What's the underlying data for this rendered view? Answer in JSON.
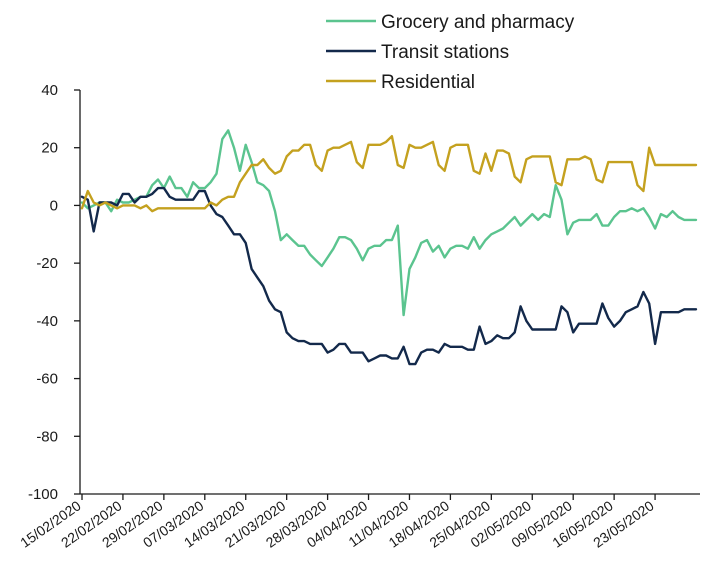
{
  "chart_data": {
    "type": "line",
    "title": "",
    "xlabel": "",
    "ylabel": "",
    "ylim": [
      -100,
      40
    ],
    "yticks": [
      40,
      20,
      0,
      -20,
      -40,
      -60,
      -80,
      -100
    ],
    "yticks_labels": [
      "40",
      "20",
      "0",
      "-20",
      "-40",
      "-60",
      "-80",
      "-100"
    ],
    "x_start": "15/02/2020",
    "x_end": "30/05/2020",
    "xtick_labels": [
      "15/02/2020",
      "22/02/2020",
      "29/02/2020",
      "07/03/2020",
      "14/03/2020",
      "21/03/2020",
      "28/03/2020",
      "04/04/2020",
      "11/04/2020",
      "18/04/2020",
      "25/04/2020",
      "02/05/2020",
      "09/05/2020",
      "16/05/2020",
      "23/05/2020"
    ],
    "grid": false,
    "legend_position": "top",
    "dates": [
      "15/02/2020",
      "16/02/2020",
      "17/02/2020",
      "18/02/2020",
      "19/02/2020",
      "20/02/2020",
      "21/02/2020",
      "22/02/2020",
      "23/02/2020",
      "24/02/2020",
      "25/02/2020",
      "26/02/2020",
      "27/02/2020",
      "28/02/2020",
      "29/02/2020",
      "01/03/2020",
      "02/03/2020",
      "03/03/2020",
      "04/03/2020",
      "05/03/2020",
      "06/03/2020",
      "07/03/2020",
      "08/03/2020",
      "09/03/2020",
      "10/03/2020",
      "11/03/2020",
      "12/03/2020",
      "13/03/2020",
      "14/03/2020",
      "15/03/2020",
      "16/03/2020",
      "17/03/2020",
      "18/03/2020",
      "19/03/2020",
      "20/03/2020",
      "21/03/2020",
      "22/03/2020",
      "23/03/2020",
      "24/03/2020",
      "25/03/2020",
      "26/03/2020",
      "27/03/2020",
      "28/03/2020",
      "29/03/2020",
      "30/03/2020",
      "31/03/2020",
      "01/04/2020",
      "02/04/2020",
      "03/04/2020",
      "04/04/2020",
      "05/04/2020",
      "06/04/2020",
      "07/04/2020",
      "08/04/2020",
      "09/04/2020",
      "10/04/2020",
      "11/04/2020",
      "12/04/2020",
      "13/04/2020",
      "14/04/2020",
      "15/04/2020",
      "16/04/2020",
      "17/04/2020",
      "18/04/2020",
      "19/04/2020",
      "20/04/2020",
      "21/04/2020",
      "22/04/2020",
      "23/04/2020",
      "24/04/2020",
      "25/04/2020",
      "26/04/2020",
      "27/04/2020",
      "28/04/2020",
      "29/04/2020",
      "30/04/2020",
      "01/05/2020",
      "02/05/2020",
      "03/05/2020",
      "04/05/2020",
      "05/05/2020",
      "06/05/2020",
      "07/05/2020",
      "08/05/2020",
      "09/05/2020",
      "10/05/2020",
      "11/05/2020",
      "12/05/2020",
      "13/05/2020",
      "14/05/2020",
      "15/05/2020",
      "16/05/2020",
      "17/05/2020",
      "18/05/2020",
      "19/05/2020",
      "20/05/2020",
      "21/05/2020",
      "22/05/2020",
      "23/05/2020",
      "24/05/2020",
      "25/05/2020",
      "26/05/2020",
      "27/05/2020",
      "28/05/2020",
      "29/05/2020",
      "30/05/2020"
    ],
    "series": [
      {
        "name": "Grocery and pharmacy",
        "color": "#5bc48f",
        "values": [
          1,
          -1,
          0,
          1,
          1,
          -2,
          2,
          1,
          1,
          2,
          3,
          3,
          7,
          9,
          6,
          10,
          6,
          6,
          3,
          8,
          6,
          6,
          8,
          11,
          23,
          26,
          20,
          12,
          21,
          15,
          8,
          7,
          5,
          -2,
          -12,
          -10,
          -12,
          -14,
          -14,
          -17,
          -19,
          -21,
          -18,
          -15,
          -11,
          -11,
          -12,
          -15,
          -19,
          -15,
          -14,
          -14,
          -12,
          -12,
          -7,
          -38,
          -22,
          -18,
          -13,
          -12,
          -16,
          -14,
          -18,
          -15,
          -14,
          -14,
          -15,
          -11,
          -15,
          -12,
          -10,
          -9,
          -8,
          -6,
          -4,
          -7,
          -5,
          -3,
          -5,
          -3,
          -4,
          7,
          2,
          -10,
          -6,
          -5,
          -5,
          -5,
          -3,
          -7,
          -7,
          -4,
          -2,
          -2,
          -1,
          -2,
          -1,
          -4,
          -8,
          -3,
          -4,
          -2,
          -4,
          -5,
          -5,
          -5
        ]
      },
      {
        "name": "Transit stations",
        "color": "#13294b",
        "values": [
          3,
          2,
          -9,
          1,
          1,
          1,
          0,
          4,
          4,
          1,
          3,
          3,
          4,
          6,
          6,
          3,
          2,
          2,
          2,
          2,
          5,
          5,
          0,
          -3,
          -4,
          -7,
          -10,
          -10,
          -13,
          -22,
          -25,
          -28,
          -33,
          -36,
          -37,
          -44,
          -46,
          -47,
          -47,
          -48,
          -48,
          -48,
          -51,
          -50,
          -48,
          -48,
          -51,
          -51,
          -51,
          -54,
          -53,
          -52,
          -52,
          -53,
          -53,
          -49,
          -55,
          -55,
          -51,
          -50,
          -50,
          -51,
          -48,
          -49,
          -49,
          -49,
          -50,
          -50,
          -42,
          -48,
          -47,
          -45,
          -46,
          -46,
          -44,
          -35,
          -40,
          -43,
          -43,
          -43,
          -43,
          -43,
          -35,
          -37,
          -44,
          -41,
          -41,
          -41,
          -41,
          -34,
          -39,
          -42,
          -40,
          -37,
          -36,
          -35,
          -30,
          -34,
          -48,
          -37,
          -37,
          -37,
          -37,
          -36,
          -36,
          -36
        ]
      },
      {
        "name": "Residential",
        "color": "#c4a11f",
        "values": [
          -1,
          5,
          1,
          0,
          1,
          0,
          -1,
          0,
          0,
          0,
          -1,
          0,
          -2,
          -1,
          -1,
          -1,
          -1,
          -1,
          -1,
          -1,
          -1,
          -1,
          1,
          0,
          2,
          3,
          3,
          8,
          11,
          14,
          14,
          16,
          13,
          11,
          12,
          17,
          19,
          19,
          21,
          21,
          14,
          12,
          19,
          20,
          20,
          21,
          22,
          15,
          13,
          21,
          21,
          21,
          22,
          24,
          14,
          13,
          21,
          20,
          20,
          21,
          22,
          14,
          12,
          20,
          21,
          21,
          21,
          12,
          11,
          18,
          12,
          19,
          19,
          18,
          10,
          8,
          16,
          17,
          17,
          17,
          17,
          8,
          7,
          16,
          16,
          16,
          17,
          16,
          9,
          8,
          15,
          15,
          15,
          15,
          15,
          7,
          5,
          20,
          14,
          14,
          14,
          14,
          14,
          14,
          14,
          14
        ]
      }
    ]
  }
}
